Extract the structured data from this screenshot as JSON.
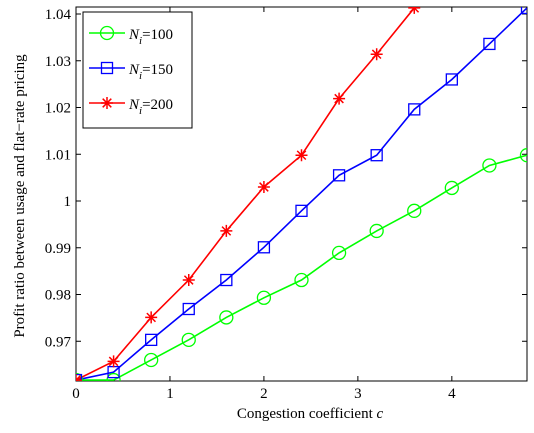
{
  "chart_data": {
    "type": "line",
    "xlabel": "Congestion coefficient",
    "xlabel_var": "c",
    "ylabel": "Profit ratio between usage and flat−rate pricing",
    "xlim": [
      0,
      4.8
    ],
    "ylim": [
      0.9615,
      1.0415
    ],
    "xticks": [
      0,
      1,
      2,
      3,
      4
    ],
    "yticks": [
      0.97,
      0.98,
      0.99,
      1.0,
      1.01,
      1.02,
      1.03,
      1.04
    ],
    "ytick_labels": [
      "0.97",
      "0.98",
      "0.99",
      "1",
      "1.01",
      "1.02",
      "1.03",
      "1.04"
    ],
    "grid": false,
    "legend_position": "top-left",
    "series": [
      {
        "name": "N_i=100",
        "legend_var": "N",
        "legend_sub": "i",
        "legend_val": "=100",
        "color": "#00ff00",
        "marker": "circle",
        "x": [
          0,
          0.4,
          0.8,
          1.2,
          1.6,
          2.0,
          2.4,
          2.8,
          3.2,
          3.6,
          4.0,
          4.4,
          4.8
        ],
        "y": [
          0.9617,
          0.9617,
          0.966,
          0.9703,
          0.9751,
          0.9793,
          0.9831,
          0.9889,
          0.9936,
          0.9979,
          1.0028,
          1.0076,
          1.0098
        ]
      },
      {
        "name": "N_i=150",
        "legend_var": "N",
        "legend_sub": "i",
        "legend_val": "=150",
        "color": "#0000ff",
        "marker": "square",
        "x": [
          0,
          0.4,
          0.8,
          1.2,
          1.6,
          2.0,
          2.4,
          2.8,
          3.2,
          3.6,
          4.0,
          4.4,
          4.8
        ],
        "y": [
          0.9617,
          0.9634,
          0.9703,
          0.9769,
          0.9831,
          0.9901,
          0.9979,
          1.0055,
          1.0098,
          1.0196,
          1.026,
          1.0336,
          1.0413
        ]
      },
      {
        "name": "N_i=200",
        "legend_var": "N",
        "legend_sub": "i",
        "legend_val": "=200",
        "color": "#ff0000",
        "marker": "star",
        "x": [
          0,
          0.4,
          0.8,
          1.2,
          1.6,
          2.0,
          2.4,
          2.8,
          3.2,
          3.6
        ],
        "y": [
          0.9617,
          0.9657,
          0.9751,
          0.9831,
          0.9936,
          1.003,
          1.0098,
          1.0219,
          1.0314,
          1.0413
        ]
      }
    ]
  }
}
